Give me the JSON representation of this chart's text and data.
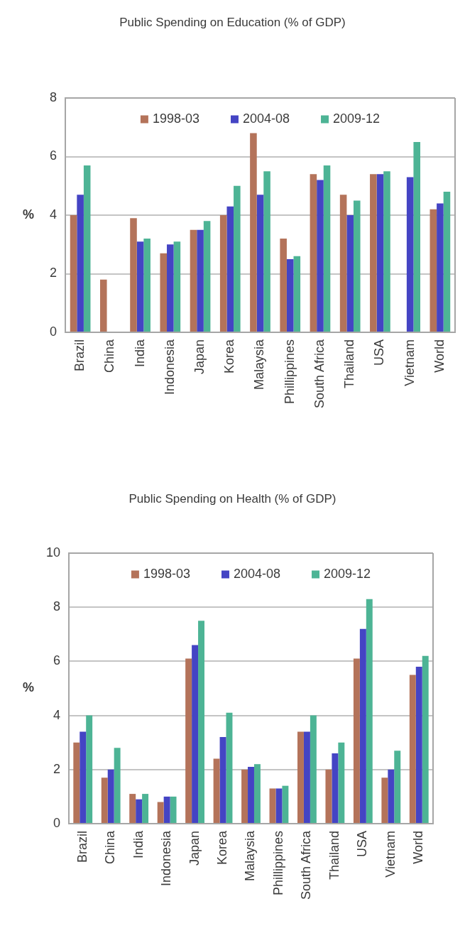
{
  "chart_data": [
    {
      "type": "bar",
      "title": "Public Spending on Education (% of GDP)",
      "ylabel": "%",
      "categories": [
        "Brazil",
        "China",
        "India",
        "Indonesia",
        "Japan",
        "Korea",
        "Malaysia",
        "Phillippines",
        "South Africa",
        "Thailand",
        "USA",
        "Vietnam",
        "World"
      ],
      "series": [
        {
          "name": "1998-03",
          "color": "#b4735a",
          "values": [
            4.0,
            1.8,
            3.9,
            2.7,
            3.5,
            4.0,
            6.8,
            3.2,
            5.4,
            4.7,
            5.4,
            null,
            4.2
          ]
        },
        {
          "name": "2004-08",
          "color": "#4444c4",
          "values": [
            4.7,
            null,
            3.1,
            3.0,
            3.5,
            4.3,
            4.7,
            2.5,
            5.2,
            4.0,
            5.4,
            5.3,
            4.4
          ]
        },
        {
          "name": "2009-12",
          "color": "#4db495",
          "values": [
            5.7,
            null,
            3.2,
            3.1,
            3.8,
            5.0,
            5.5,
            2.6,
            5.7,
            4.5,
            5.5,
            6.5,
            4.8
          ]
        }
      ],
      "ylim": [
        0,
        8
      ],
      "yticks": [
        0,
        2,
        4,
        6,
        8
      ],
      "grid": "y",
      "legend": "top"
    },
    {
      "type": "bar",
      "title": "Public Spending on Health (% of GDP)",
      "ylabel": "%",
      "categories": [
        "Brazil",
        "China",
        "India",
        "Indonesia",
        "Japan",
        "Korea",
        "Malaysia",
        "Phillippines",
        "South Africa",
        "Thailand",
        "USA",
        "Vietnam",
        "World"
      ],
      "series": [
        {
          "name": "1998-03",
          "color": "#b4735a",
          "values": [
            3.0,
            1.7,
            1.1,
            0.8,
            6.1,
            2.4,
            2.0,
            1.3,
            3.4,
            2.0,
            6.1,
            1.7,
            5.5
          ]
        },
        {
          "name": "2004-08",
          "color": "#4444c4",
          "values": [
            3.4,
            2.0,
            0.9,
            1.0,
            6.6,
            3.2,
            2.1,
            1.3,
            3.4,
            2.6,
            7.2,
            2.0,
            5.8
          ]
        },
        {
          "name": "2009-12",
          "color": "#4db495",
          "values": [
            4.0,
            2.8,
            1.1,
            1.0,
            7.5,
            4.1,
            2.2,
            1.4,
            4.0,
            3.0,
            8.3,
            2.7,
            6.2
          ]
        }
      ],
      "ylim": [
        0,
        10
      ],
      "yticks": [
        0,
        2,
        4,
        6,
        8,
        10
      ],
      "grid": "y",
      "legend": "top"
    }
  ]
}
